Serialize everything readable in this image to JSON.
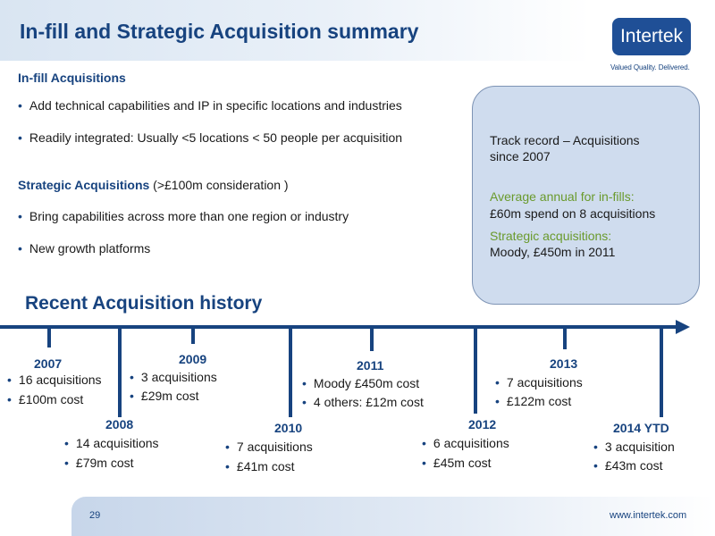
{
  "header": {
    "title": "In-fill and Strategic Acquisition summary"
  },
  "logo": {
    "text": "Intertek",
    "tagline": "Valued Quality. Delivered."
  },
  "infill": {
    "heading": "In-fill Acquisitions",
    "bullets": [
      "Add technical capabilities and IP in specific locations and industries",
      "Readily integrated: Usually <5 locations < 50 people per acquisition"
    ]
  },
  "strategic": {
    "heading": "Strategic Acquisitions",
    "heading_suffix": " (>£100m consideration )",
    "bullets": [
      "Bring capabilities across more than one region or industry",
      "New growth platforms"
    ]
  },
  "callout": {
    "line1": "Track record – Acquisitions",
    "line2": "since 2007",
    "green1": "Average annual for in-fills:",
    "line3": "£60m spend on 8 acquisitions",
    "green2": "Strategic acquisitions:",
    "line4": "Moody, £450m in 2011"
  },
  "history": {
    "title": "Recent Acquisition history",
    "years": [
      {
        "year": "2007",
        "items": [
          "16 acquisitions",
          "£100m cost"
        ]
      },
      {
        "year": "2008",
        "items": [
          "14 acquisitions",
          "£79m cost"
        ]
      },
      {
        "year": "2009",
        "items": [
          "3 acquisitions",
          "£29m cost"
        ]
      },
      {
        "year": "2010",
        "items": [
          "7 acquisitions",
          "£41m cost"
        ]
      },
      {
        "year": "2011",
        "items": [
          "Moody £450m cost",
          "4 others: £12m cost"
        ]
      },
      {
        "year": "2012",
        "items": [
          "6 acquisitions",
          "£45m cost"
        ]
      },
      {
        "year": "2013",
        "items": [
          "7 acquisitions",
          "£122m cost"
        ]
      },
      {
        "year": "2014 YTD",
        "items": [
          "3 acquisition",
          "£43m cost"
        ]
      }
    ]
  },
  "footer": {
    "page": "29",
    "url": "www.intertek.com"
  },
  "colors": {
    "brand_blue": "#17437f",
    "logo_blue": "#1f4f96",
    "accent_green": "#6a9a2c",
    "callout_fill": "#cfdcee"
  }
}
